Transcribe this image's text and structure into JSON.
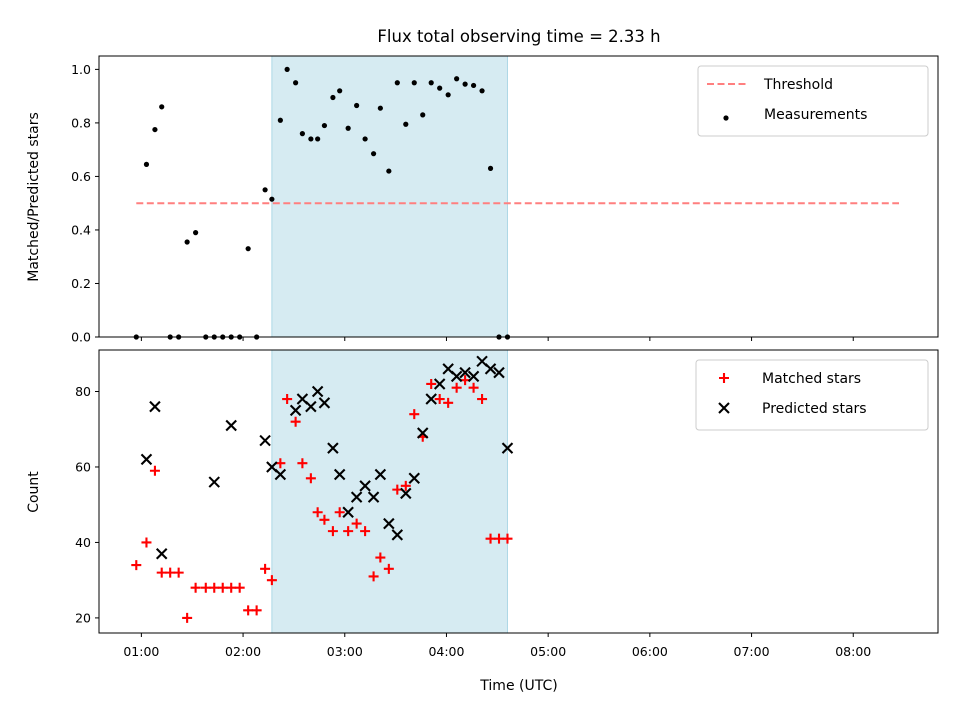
{
  "title": "Flux total observing time = 2.33 h",
  "xlabel": "Time (UTC)",
  "colors": {
    "shade": "#add8e6",
    "threshold": "#ff7f7f",
    "measurements": "#000000",
    "matched": "#ff0000",
    "predicted": "#000000"
  },
  "chart_data": [
    {
      "type": "scatter",
      "ylabel": "Matched/Predicted stars",
      "xlim": [
        "00:35",
        "08:50"
      ],
      "ylim": [
        0,
        1.05
      ],
      "xticks": [
        "01:00",
        "02:00",
        "03:00",
        "04:00",
        "05:00",
        "06:00",
        "07:00",
        "08:00"
      ],
      "yticks": [
        "0.0",
        "0.2",
        "0.4",
        "0.6",
        "0.8",
        "1.0"
      ],
      "legend_position": "top-right",
      "shaded_span": [
        "02:17",
        "04:36"
      ],
      "threshold": {
        "name": "Threshold",
        "y": 0.5,
        "x": [
          "00:57",
          "08:27"
        ]
      },
      "series": [
        {
          "name": "Measurements",
          "marker": "dot",
          "x": [
            "00:57",
            "01:03",
            "01:08",
            "01:12",
            "01:17",
            "01:22",
            "01:27",
            "01:32",
            "01:38",
            "01:43",
            "01:48",
            "01:53",
            "01:58",
            "02:03",
            "02:08",
            "02:13",
            "02:17",
            "02:22",
            "02:26",
            "02:31",
            "02:35",
            "02:40",
            "02:44",
            "02:48",
            "02:53",
            "02:57",
            "03:02",
            "03:07",
            "03:12",
            "03:17",
            "03:21",
            "03:26",
            "03:31",
            "03:36",
            "03:41",
            "03:46",
            "03:51",
            "03:56",
            "04:01",
            "04:06",
            "04:11",
            "04:16",
            "04:21",
            "04:26",
            "04:31",
            "04:36"
          ],
          "y": [
            0.0,
            0.645,
            0.775,
            0.86,
            0.0,
            0.0,
            0.355,
            0.39,
            0.0,
            0.0,
            0.0,
            0.0,
            0.0,
            0.33,
            0.0,
            0.55,
            0.515,
            0.81,
            1.0,
            0.95,
            0.76,
            0.74,
            0.74,
            0.79,
            0.895,
            0.92,
            0.78,
            0.865,
            0.74,
            0.685,
            0.855,
            0.62,
            0.95,
            0.795,
            0.95,
            0.83,
            0.95,
            0.93,
            0.905,
            0.965,
            0.945,
            0.94,
            0.92,
            0.63,
            0.0,
            0.0
          ]
        }
      ]
    },
    {
      "type": "scatter",
      "ylabel": "Count",
      "xlim": [
        "00:35",
        "08:50"
      ],
      "ylim": [
        16,
        91
      ],
      "xticks": [
        "01:00",
        "02:00",
        "03:00",
        "04:00",
        "05:00",
        "06:00",
        "07:00",
        "08:00"
      ],
      "yticks": [
        "20",
        "40",
        "60",
        "80"
      ],
      "legend_position": "top-right",
      "shaded_span": [
        "02:17",
        "04:36"
      ],
      "series": [
        {
          "name": "Matched stars",
          "marker": "plus",
          "x": [
            "00:57",
            "01:03",
            "01:08",
            "01:12",
            "01:17",
            "01:22",
            "01:27",
            "01:32",
            "01:38",
            "01:43",
            "01:48",
            "01:53",
            "01:58",
            "02:03",
            "02:08",
            "02:13",
            "02:17",
            "02:22",
            "02:26",
            "02:31",
            "02:35",
            "02:40",
            "02:44",
            "02:48",
            "02:53",
            "02:57",
            "03:02",
            "03:07",
            "03:12",
            "03:17",
            "03:21",
            "03:26",
            "03:31",
            "03:36",
            "03:41",
            "03:46",
            "03:51",
            "03:56",
            "04:01",
            "04:06",
            "04:11",
            "04:16",
            "04:21",
            "04:26",
            "04:31",
            "04:36"
          ],
          "y": [
            34,
            40,
            59,
            32,
            32,
            32,
            20,
            28,
            28,
            28,
            28,
            28,
            28,
            22,
            22,
            33,
            30,
            61,
            78,
            72,
            61,
            57,
            48,
            46,
            43,
            48,
            43,
            45,
            43,
            31,
            36,
            33,
            54,
            55,
            74,
            68,
            82,
            78,
            77,
            81,
            83,
            81,
            78,
            41,
            41,
            41
          ]
        },
        {
          "name": "Predicted stars",
          "marker": "x",
          "x": [
            "01:03",
            "01:08",
            "01:12",
            "01:43",
            "01:53",
            "02:13",
            "02:17",
            "02:22",
            "02:31",
            "02:35",
            "02:40",
            "02:44",
            "02:48",
            "02:53",
            "02:57",
            "03:02",
            "03:07",
            "03:12",
            "03:17",
            "03:21",
            "03:26",
            "03:31",
            "03:36",
            "03:41",
            "03:46",
            "03:51",
            "03:56",
            "04:01",
            "04:06",
            "04:11",
            "04:16",
            "04:21",
            "04:26",
            "04:31",
            "04:36"
          ],
          "y": [
            62,
            76,
            37,
            56,
            71,
            67,
            60,
            58,
            75,
            78,
            76,
            80,
            77,
            65,
            58,
            48,
            52,
            55,
            52,
            58,
            45,
            42,
            53,
            57,
            69,
            78,
            82,
            86,
            84,
            85,
            84,
            88,
            86,
            85,
            65
          ]
        }
      ]
    }
  ]
}
